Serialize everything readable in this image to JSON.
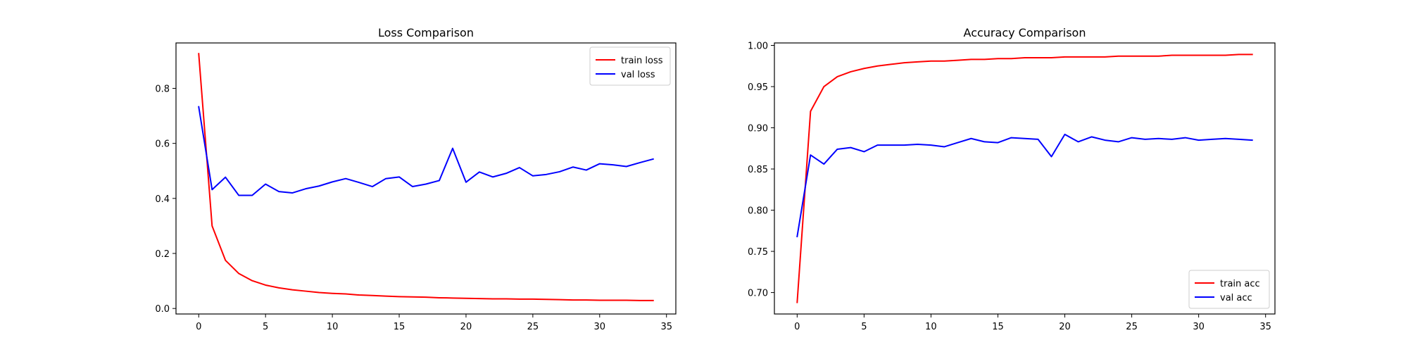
{
  "chart_data": [
    {
      "type": "line",
      "title": "Loss Comparison",
      "xlabel": "",
      "ylabel": "",
      "xlim": [
        -1.7,
        35.7
      ],
      "ylim": [
        -0.02,
        0.965
      ],
      "xticks": [
        0,
        5,
        10,
        15,
        20,
        25,
        30,
        35
      ],
      "xtick_labels": [
        "0",
        "5",
        "10",
        "15",
        "20",
        "25",
        "30",
        "35"
      ],
      "yticks": [
        0.0,
        0.2,
        0.4,
        0.6,
        0.8
      ],
      "ytick_labels": [
        "0.0",
        "0.2",
        "0.4",
        "0.6",
        "0.8"
      ],
      "grid": false,
      "legend": "top-right",
      "x": [
        0,
        1,
        2,
        3,
        4,
        5,
        6,
        7,
        8,
        9,
        10,
        11,
        12,
        13,
        14,
        15,
        16,
        17,
        18,
        19,
        20,
        21,
        22,
        23,
        24,
        25,
        26,
        27,
        28,
        29,
        30,
        31,
        32,
        33,
        34
      ],
      "series": [
        {
          "name": "train loss",
          "color": "#ff0000",
          "values": [
            0.926,
            0.3,
            0.175,
            0.127,
            0.101,
            0.085,
            0.075,
            0.068,
            0.063,
            0.058,
            0.055,
            0.053,
            0.049,
            0.047,
            0.045,
            0.043,
            0.042,
            0.041,
            0.039,
            0.038,
            0.037,
            0.036,
            0.035,
            0.035,
            0.034,
            0.034,
            0.033,
            0.032,
            0.031,
            0.031,
            0.03,
            0.03,
            0.03,
            0.029,
            0.029
          ]
        },
        {
          "name": "val loss",
          "color": "#0000ff",
          "values": [
            0.733,
            0.432,
            0.477,
            0.411,
            0.411,
            0.452,
            0.425,
            0.42,
            0.435,
            0.445,
            0.46,
            0.472,
            0.458,
            0.443,
            0.472,
            0.478,
            0.443,
            0.452,
            0.465,
            0.582,
            0.459,
            0.496,
            0.478,
            0.491,
            0.512,
            0.482,
            0.487,
            0.497,
            0.514,
            0.503,
            0.526,
            0.522,
            0.516,
            0.53,
            0.543
          ]
        }
      ]
    },
    {
      "type": "line",
      "title": "Accuracy Comparison",
      "xlabel": "",
      "ylabel": "",
      "xlim": [
        -1.7,
        35.7
      ],
      "ylim": [
        0.674,
        1.003
      ],
      "xticks": [
        0,
        5,
        10,
        15,
        20,
        25,
        30,
        35
      ],
      "xtick_labels": [
        "0",
        "5",
        "10",
        "15",
        "20",
        "25",
        "30",
        "35"
      ],
      "yticks": [
        0.7,
        0.75,
        0.8,
        0.85,
        0.9,
        0.95,
        1.0
      ],
      "ytick_labels": [
        "0.70",
        "0.75",
        "0.80",
        "0.85",
        "0.90",
        "0.95",
        "1.00"
      ],
      "grid": false,
      "legend": "bottom-right",
      "x": [
        0,
        1,
        2,
        3,
        4,
        5,
        6,
        7,
        8,
        9,
        10,
        11,
        12,
        13,
        14,
        15,
        16,
        17,
        18,
        19,
        20,
        21,
        22,
        23,
        24,
        25,
        26,
        27,
        28,
        29,
        30,
        31,
        32,
        33,
        34
      ],
      "series": [
        {
          "name": "train acc",
          "color": "#ff0000",
          "values": [
            0.688,
            0.92,
            0.95,
            0.962,
            0.968,
            0.972,
            0.975,
            0.977,
            0.979,
            0.98,
            0.981,
            0.981,
            0.982,
            0.983,
            0.983,
            0.984,
            0.984,
            0.985,
            0.985,
            0.985,
            0.986,
            0.986,
            0.986,
            0.986,
            0.987,
            0.987,
            0.987,
            0.987,
            0.988,
            0.988,
            0.988,
            0.988,
            0.988,
            0.989,
            0.989
          ]
        },
        {
          "name": "val acc",
          "color": "#0000ff",
          "values": [
            0.768,
            0.867,
            0.856,
            0.874,
            0.876,
            0.871,
            0.879,
            0.879,
            0.879,
            0.88,
            0.879,
            0.877,
            0.882,
            0.887,
            0.883,
            0.882,
            0.888,
            0.887,
            0.886,
            0.865,
            0.892,
            0.883,
            0.889,
            0.885,
            0.883,
            0.888,
            0.886,
            0.887,
            0.886,
            0.888,
            0.885,
            0.886,
            0.887,
            0.886,
            0.885
          ]
        }
      ]
    }
  ]
}
